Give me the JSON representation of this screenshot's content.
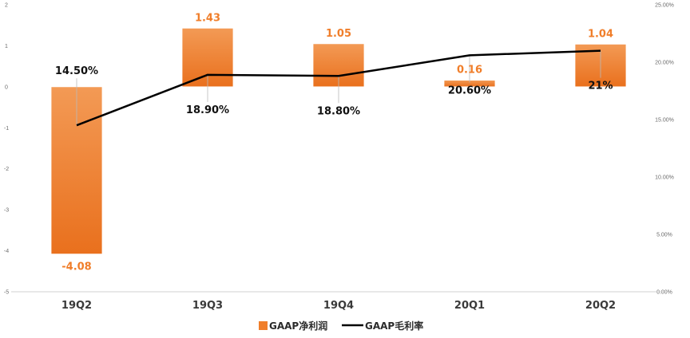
{
  "chart_data": {
    "type": "bar",
    "categories": [
      "19Q2",
      "19Q3",
      "19Q4",
      "20Q1",
      "20Q2"
    ],
    "series": [
      {
        "name": "GAAP净利润",
        "type": "bar",
        "axis": "left",
        "values": [
          -4.08,
          1.43,
          1.05,
          0.16,
          1.04
        ],
        "labels": [
          "-4.08",
          "1.43",
          "1.05",
          "0.16",
          "1.04"
        ],
        "color": "#F07E2A"
      },
      {
        "name": "GAAP毛利率",
        "type": "line",
        "axis": "right",
        "values": [
          14.5,
          18.9,
          18.8,
          20.6,
          21.0
        ],
        "labels": [
          "14.50%",
          "18.90%",
          "18.80%",
          "20.60%",
          "21%"
        ],
        "color": "#000000"
      }
    ],
    "left_axis": {
      "ylim": [
        -5,
        2
      ],
      "ticks": [
        2,
        1,
        0,
        -1,
        -2,
        -3,
        -4,
        -5
      ],
      "tick_labels": [
        "2",
        "1",
        "0",
        "-1",
        "-2",
        "-3",
        "-4",
        "-5"
      ]
    },
    "right_axis": {
      "ylim": [
        0,
        25
      ],
      "ticks": [
        25,
        20,
        15,
        10,
        5,
        0
      ],
      "tick_labels": [
        "25.00%",
        "20.00%",
        "15.00%",
        "10.00%",
        "5.00%",
        "0.00%"
      ]
    },
    "legend": {
      "position": "bottom"
    },
    "grid": false,
    "label_color": "#F07E2A"
  }
}
